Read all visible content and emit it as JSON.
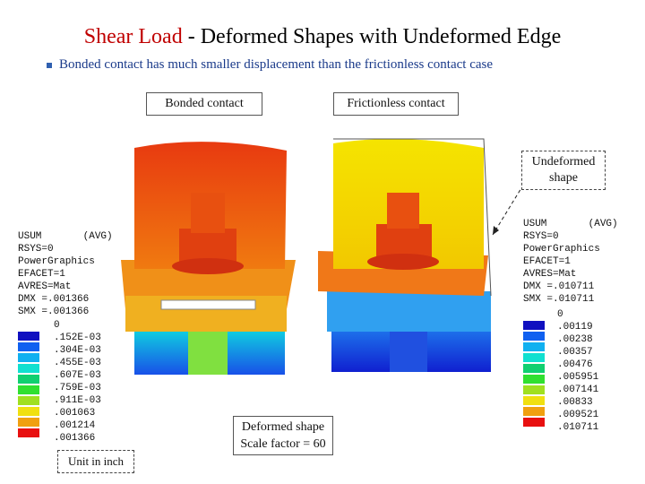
{
  "header": {
    "title_highlight": "Shear Load",
    "title_rest": " - Deformed Shapes with Undeformed Edge",
    "bullet": "Bonded contact has much smaller displacement than the frictionless contact case"
  },
  "labels": {
    "bonded": "Bonded contact",
    "frictionless": "Frictionless contact",
    "undeformed": [
      "Undeformed",
      "shape"
    ],
    "deformed": [
      "Deformed shape",
      "Scale factor = 60"
    ],
    "unit": "Unit in inch"
  },
  "left_legend": {
    "header": [
      "USUM       (AVG)",
      "RSYS=0",
      "PowerGraphics",
      "EFACET=1",
      "AVRES=Mat",
      "DMX =.001366",
      "SMX =.001366"
    ],
    "values": [
      "0",
      ".152E-03",
      ".304E-03",
      ".455E-03",
      ".607E-03",
      ".759E-03",
      ".911E-03",
      ".001063",
      ".001214",
      ".001366"
    ]
  },
  "right_legend": {
    "header": [
      "USUM       (AVG)",
      "RSYS=0",
      "PowerGraphics",
      "EFACET=1",
      "AVRES=Mat",
      "DMX =.010711",
      "SMX =.010711"
    ],
    "values": [
      "0",
      ".00119",
      ".00238",
      ".00357",
      ".00476",
      ".005951",
      ".007141",
      ".00833",
      ".009521",
      ".010711"
    ]
  }
}
